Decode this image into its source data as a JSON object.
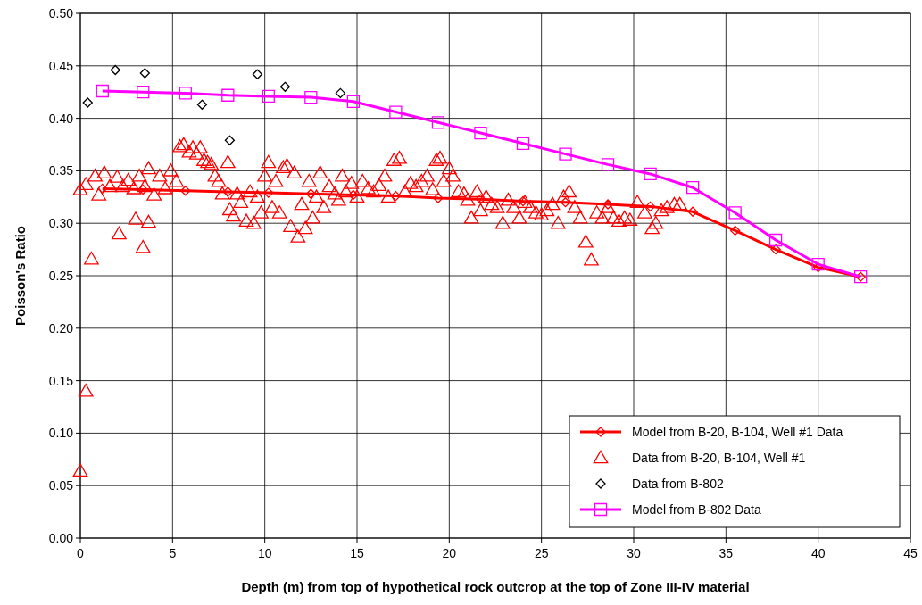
{
  "chart_data": {
    "type": "scatter",
    "xlabel": "Depth (m) from top of hypothetical rock outcrop at the top of Zone III-IV material",
    "ylabel": "Poisson's Ratio",
    "xlim": [
      0,
      45
    ],
    "xticks": [
      0,
      5,
      10,
      15,
      20,
      25,
      30,
      35,
      40,
      45
    ],
    "ylim": [
      0,
      0.5
    ],
    "yticks": [
      {
        "value": 0,
        "label": "0.00"
      },
      {
        "value": 0.05,
        "label": "0.05"
      },
      {
        "value": 0.1,
        "label": "0.10"
      },
      {
        "value": 0.15,
        "label": "0.15"
      },
      {
        "value": 0.2,
        "label": "0.20"
      },
      {
        "value": 0.25,
        "label": "0.25"
      },
      {
        "value": 0.3,
        "label": "0.30"
      },
      {
        "value": 0.35,
        "label": "0.35"
      },
      {
        "value": 0.4,
        "label": "0.40"
      },
      {
        "value": 0.45,
        "label": "0.45"
      },
      {
        "value": 0.5,
        "label": "0.50"
      }
    ],
    "grid": true,
    "legend": "bottom right",
    "series": [
      {
        "name": "Model from B-20, B-104, Well #1 Data",
        "type": "line",
        "marker": "diamond",
        "color": "#ff0000",
        "x": [
          1.2,
          3.4,
          5.7,
          8.0,
          10.2,
          12.5,
          14.8,
          17.1,
          19.4,
          21.7,
          24.0,
          26.3,
          28.6,
          30.9,
          33.2,
          35.5,
          37.7,
          40.0,
          42.3
        ],
        "values": [
          0.333,
          0.332,
          0.331,
          0.33,
          0.329,
          0.328,
          0.327,
          0.326,
          0.324,
          0.323,
          0.321,
          0.32,
          0.318,
          0.316,
          0.311,
          0.293,
          0.275,
          0.258,
          0.249
        ]
      },
      {
        "name": "Data from B-20, B-104, Well #1",
        "type": "scatter",
        "marker": "triangle",
        "color": "#ff0000",
        "x": [
          0,
          0.3,
          0.6,
          2.1,
          3.0,
          3.4,
          3.7,
          0,
          0.3,
          0.8,
          1.0,
          1.3,
          1.6,
          2.0,
          2.3,
          2.6,
          2.9,
          3.2,
          3.5,
          3.7,
          4.0,
          4.3,
          4.6,
          4.9,
          5.2,
          5.4,
          5.6,
          5.9,
          6.1,
          6.3,
          6.5,
          6.7,
          6.9,
          7.1,
          7.3,
          7.5,
          7.7,
          8.0,
          8.1,
          8.3,
          8.5,
          8.7,
          9.0,
          9.2,
          9.4,
          9.6,
          9.8,
          10.0,
          10.2,
          10.4,
          10.6,
          10.8,
          11.0,
          11.2,
          11.4,
          11.6,
          11.8,
          12.0,
          12.2,
          12.4,
          12.6,
          12.8,
          13.0,
          13.2,
          13.5,
          13.8,
          14.0,
          14.2,
          14.4,
          14.7,
          15.0,
          15.3,
          15.6,
          15.9,
          16.2,
          16.5,
          16.7,
          17.0,
          17.3,
          17.6,
          17.9,
          18.2,
          18.5,
          18.8,
          19.1,
          19.3,
          19.5,
          19.7,
          20.0,
          20.2,
          20.5,
          20.8,
          21.0,
          21.2,
          21.5,
          21.7,
          22.0,
          22.3,
          22.6,
          22.9,
          23.2,
          23.5,
          23.8,
          24.1,
          24.4,
          24.7,
          25.0,
          25.3,
          25.6,
          25.9,
          26.2,
          26.5,
          26.8,
          27.1,
          27.4,
          27.7,
          28.0,
          28.3,
          28.6,
          28.9,
          29.2,
          29.5,
          29.8,
          30.2,
          30.6,
          31.0,
          31.2,
          31.5,
          31.8,
          32.2,
          32.5
        ],
        "values": [
          0.064,
          0.14,
          0.266,
          0.29,
          0.304,
          0.277,
          0.301,
          0.332,
          0.337,
          0.345,
          0.327,
          0.348,
          0.335,
          0.344,
          0.335,
          0.341,
          0.333,
          0.345,
          0.335,
          0.352,
          0.327,
          0.345,
          0.333,
          0.35,
          0.34,
          0.373,
          0.375,
          0.368,
          0.372,
          0.366,
          0.372,
          0.36,
          0.358,
          0.356,
          0.345,
          0.34,
          0.328,
          0.358,
          0.313,
          0.307,
          0.328,
          0.32,
          0.302,
          0.33,
          0.3,
          0.325,
          0.31,
          0.345,
          0.358,
          0.315,
          0.34,
          0.31,
          0.353,
          0.355,
          0.297,
          0.348,
          0.287,
          0.318,
          0.295,
          0.34,
          0.305,
          0.325,
          0.348,
          0.315,
          0.335,
          0.328,
          0.322,
          0.345,
          0.33,
          0.338,
          0.325,
          0.34,
          0.333,
          0.33,
          0.336,
          0.345,
          0.325,
          0.36,
          0.362,
          0.33,
          0.338,
          0.335,
          0.34,
          0.345,
          0.332,
          0.36,
          0.362,
          0.34,
          0.352,
          0.345,
          0.33,
          0.328,
          0.322,
          0.305,
          0.33,
          0.312,
          0.325,
          0.318,
          0.315,
          0.3,
          0.322,
          0.315,
          0.305,
          0.32,
          0.315,
          0.31,
          0.308,
          0.312,
          0.318,
          0.3,
          0.325,
          0.33,
          0.315,
          0.305,
          0.282,
          0.265,
          0.31,
          0.305,
          0.315,
          0.305,
          0.302,
          0.305,
          0.303,
          0.32,
          0.31,
          0.295,
          0.3,
          0.312,
          0.315,
          0.318,
          0.318
        ]
      },
      {
        "name": "Data from B-802",
        "type": "scatter",
        "marker": "diamond",
        "color": "#000000",
        "x": [
          0.4,
          1.9,
          3.5,
          6.6,
          8.1,
          9.6,
          11.1,
          14.1
        ],
        "values": [
          0.415,
          0.446,
          0.443,
          0.413,
          0.379,
          0.442,
          0.43,
          0.424
        ]
      },
      {
        "name": "Model from B-802 Data",
        "type": "line",
        "marker": "square",
        "color": "#ff00ff",
        "x": [
          1.2,
          3.4,
          5.7,
          8.0,
          10.2,
          12.5,
          14.8,
          17.1,
          19.4,
          21.7,
          24.0,
          26.3,
          28.6,
          30.9,
          33.2,
          35.5,
          37.7,
          40.0,
          42.3
        ],
        "values": [
          0.426,
          0.425,
          0.424,
          0.422,
          0.421,
          0.42,
          0.416,
          0.406,
          0.396,
          0.386,
          0.376,
          0.366,
          0.356,
          0.347,
          0.334,
          0.31,
          0.284,
          0.261,
          0.249
        ]
      }
    ]
  }
}
